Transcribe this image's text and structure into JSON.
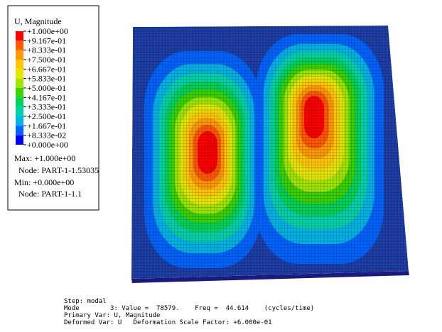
{
  "legend": {
    "title": "U, Magnitude",
    "labels": [
      "+1.000e+00",
      "+9.167e-01",
      "+8.333e-01",
      "+7.500e-01",
      "+6.667e-01",
      "+5.833e-01",
      "+5.000e-01",
      "+4.167e-01",
      "+3.333e-01",
      "+2.500e-01",
      "+1.667e-01",
      "+8.333e-02",
      "+0.000e+00"
    ],
    "colors": [
      "#ff0000",
      "#ff5a00",
      "#ff9a00",
      "#ffc800",
      "#e6e600",
      "#a0e600",
      "#3cd200",
      "#00d25a",
      "#00d2aa",
      "#00b4e6",
      "#0064ff",
      "#0000ff"
    ],
    "max": "Max: +1.000e+00",
    "max_node": "Node: PART-1-1.53035",
    "min": "Min: +0.000e+00",
    "min_node": "Node: PART-1-1.1"
  },
  "info": [
    "Step: modal",
    "Mode        3: Value =  78579.    Freq =  44.614    (cycles/time)",
    "Primary Var: U, Magnitude",
    "Deformed Var: U   Deformation Scale Factor: +6.000e-01"
  ]
}
